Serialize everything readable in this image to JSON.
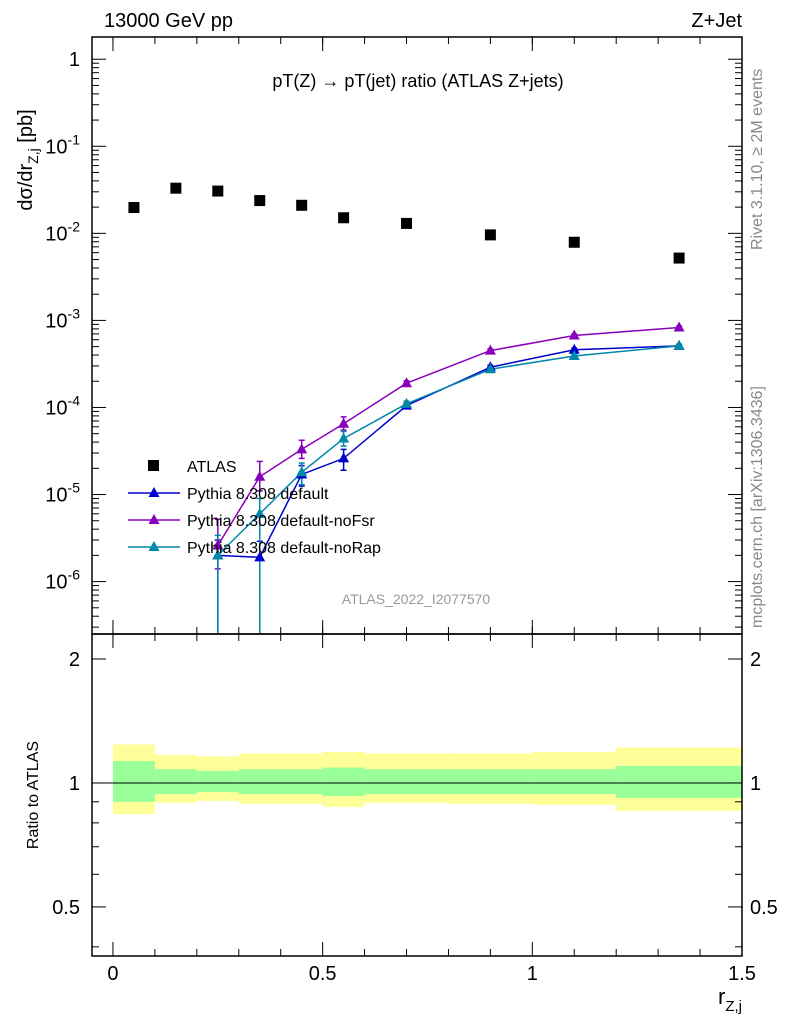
{
  "header": {
    "left": "13000 GeV pp",
    "right": "Z+Jet"
  },
  "side_labels": {
    "rivet": "Rivet 3.1.10, ≥ 2M events",
    "mcplots": "mcplots.cern.ch [arXiv:1306.3436]"
  },
  "analysis_id": "ATLAS_2022_I2077570",
  "chart_data": [
    {
      "type": "line",
      "title": "pT(Z) → pT(jet) ratio (ATLAS Z+jets)",
      "ylabel": "dσ/dr_{Z,j} [pb]",
      "xlabel": "r_{Z,j}",
      "xlim": [
        -0.05,
        1.5
      ],
      "ylim": [
        2.5e-07,
        1.8
      ],
      "yscale": "log",
      "legend_position": "middle-left",
      "x_ticks": [
        "0",
        "0.5",
        "1",
        "1.5"
      ],
      "y_ticks": [
        "10^{-6}",
        "10^{-5}",
        "10^{-4}",
        "10^{-3}",
        "10^{-2}",
        "10^{-1}",
        "1"
      ],
      "data_series": {
        "name": "ATLAS",
        "marker": "square",
        "color": "#000000",
        "x": [
          0.05,
          0.15,
          0.25,
          0.35,
          0.45,
          0.55,
          0.7,
          0.9,
          1.1,
          1.35
        ],
        "xerr": [
          0.05,
          0.05,
          0.05,
          0.05,
          0.05,
          0.05,
          0.1,
          0.1,
          0.1,
          0.15
        ],
        "y": [
          0.0198,
          0.033,
          0.0306,
          0.0238,
          0.021,
          0.0151,
          0.013,
          0.0096,
          0.0079,
          0.0052
        ]
      },
      "series": [
        {
          "name": "Pythia 8.308 default",
          "color": "#0000cc",
          "marker": "triangle",
          "x": [
            0.25,
            0.35,
            0.45,
            0.55,
            0.7,
            0.9,
            1.1,
            1.35
          ],
          "y": [
            2e-06,
            1.9e-06,
            1.7e-05,
            2.6e-05,
            0.000105,
            0.00029,
            0.00046,
            0.00051
          ],
          "yerr_lo": [
            1.75e-06,
            1.65e-06,
            4.5e-06,
            7e-06,
            8e-06,
            1.5e-05,
            2e-05,
            2e-05
          ],
          "yerr_hi": [
            1e-06,
            1e-06,
            4.5e-06,
            7e-06,
            8e-06,
            1.5e-05,
            2e-05,
            2e-05
          ]
        },
        {
          "name": "Pythia 8.308 default-noFsr",
          "color": "#8800bb",
          "marker": "triangle",
          "x": [
            0.25,
            0.35,
            0.45,
            0.55,
            0.7,
            0.9,
            1.1,
            1.35
          ],
          "y": [
            2.6e-06,
            1.6e-05,
            3.3e-05,
            6.5e-05,
            0.00019,
            0.00045,
            0.00067,
            0.00083
          ],
          "yerr_lo": [
            1.2e-06,
            5e-06,
            7e-06,
            1e-05,
            1.2e-05,
            2e-05,
            2.5e-05,
            3e-05
          ],
          "yerr_hi": [
            2.6e-06,
            8e-06,
            9e-06,
            1.3e-05,
            1.2e-05,
            2e-05,
            2.5e-05,
            3e-05
          ]
        },
        {
          "name": "Pythia 8.308 default-noRap",
          "color": "#0088aa",
          "marker": "triangle",
          "x": [
            0.25,
            0.35,
            0.45,
            0.55,
            0.7,
            0.9,
            1.1,
            1.35
          ],
          "y": [
            2e-06,
            6e-06,
            1.8e-05,
            4.4e-05,
            0.00011,
            0.000275,
            0.00039,
            0.00051
          ],
          "yerr_lo": [
            1.75e-06,
            5.75e-06,
            5e-06,
            8e-06,
            8e-06,
            1.5e-05,
            2e-05,
            2e-05
          ],
          "yerr_hi": [
            1.4e-06,
            3e-06,
            5e-06,
            9e-06,
            8e-06,
            1.5e-05,
            2e-05,
            2e-05
          ]
        }
      ]
    },
    {
      "type": "area",
      "ylabel": "Ratio to ATLAS",
      "xlabel": "r_{Z,j}",
      "xlim": [
        -0.05,
        1.5
      ],
      "ylim": [
        0.38,
        2.3
      ],
      "yscale": "log",
      "x_ticks": [
        "0",
        "0.5",
        "1",
        "1.5"
      ],
      "y_ticks": [
        "0.5",
        "1",
        "2"
      ],
      "reference_line": 1,
      "bins": [
        {
          "lo": 0.0,
          "hi": 0.1,
          "stat_lo": 0.9,
          "stat_hi": 1.13,
          "tot_lo": 0.84,
          "tot_hi": 1.24
        },
        {
          "lo": 0.1,
          "hi": 0.2,
          "stat_lo": 0.94,
          "stat_hi": 1.08,
          "tot_lo": 0.895,
          "tot_hi": 1.17
        },
        {
          "lo": 0.2,
          "hi": 0.3,
          "stat_lo": 0.95,
          "stat_hi": 1.07,
          "tot_lo": 0.905,
          "tot_hi": 1.16
        },
        {
          "lo": 0.3,
          "hi": 0.5,
          "stat_lo": 0.94,
          "stat_hi": 1.08,
          "tot_lo": 0.89,
          "tot_hi": 1.18
        },
        {
          "lo": 0.5,
          "hi": 0.6,
          "stat_lo": 0.93,
          "stat_hi": 1.09,
          "tot_lo": 0.875,
          "tot_hi": 1.19
        },
        {
          "lo": 0.6,
          "hi": 0.8,
          "stat_lo": 0.94,
          "stat_hi": 1.08,
          "tot_lo": 0.895,
          "tot_hi": 1.18
        },
        {
          "lo": 0.8,
          "hi": 1.0,
          "stat_lo": 0.94,
          "stat_hi": 1.08,
          "tot_lo": 0.89,
          "tot_hi": 1.18
        },
        {
          "lo": 1.0,
          "hi": 1.2,
          "stat_lo": 0.94,
          "stat_hi": 1.08,
          "tot_lo": 0.885,
          "tot_hi": 1.19
        },
        {
          "lo": 1.2,
          "hi": 1.5,
          "stat_lo": 0.92,
          "stat_hi": 1.1,
          "tot_lo": 0.855,
          "tot_hi": 1.22
        }
      ],
      "colors": {
        "stat_band": "#99ff99",
        "total_band": "#ffff99"
      }
    }
  ]
}
